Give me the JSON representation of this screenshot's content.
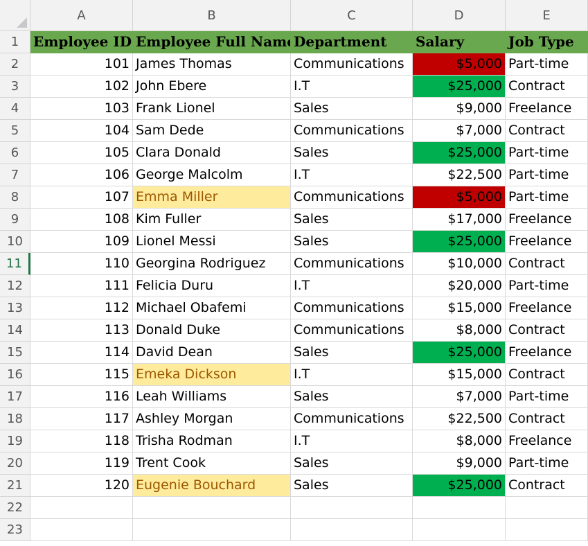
{
  "columns": [
    "A",
    "B",
    "C",
    "D",
    "E"
  ],
  "row_numbers": [
    "1",
    "2",
    "3",
    "4",
    "5",
    "6",
    "7",
    "8",
    "9",
    "10",
    "11",
    "12",
    "13",
    "14",
    "15",
    "16",
    "17",
    "18",
    "19",
    "20",
    "21",
    "22",
    "23"
  ],
  "active_row": "11",
  "headers": {
    "employee_id": "Employee ID",
    "full_name": "Employee Full Name",
    "department": "Department",
    "salary": "Salary",
    "job_type": "Job Type"
  },
  "colors": {
    "header_bg": "#6aa84f",
    "red_fill": "#c00000",
    "green_fill": "#00b050",
    "yellow_fill": "#ffeb9c",
    "yellow_text": "#9c5700"
  },
  "rows": [
    {
      "id": "101",
      "name": "James Thomas",
      "dept": "Communications",
      "salary": "$5,000",
      "job": "Part-time",
      "salary_fill": "red",
      "name_fill": ""
    },
    {
      "id": "102",
      "name": "John Ebere",
      "dept": "I.T",
      "salary": "$25,000",
      "job": "Contract",
      "salary_fill": "green",
      "name_fill": ""
    },
    {
      "id": "103",
      "name": "Frank Lionel",
      "dept": "Sales",
      "salary": "$9,000",
      "job": "Freelance",
      "salary_fill": "",
      "name_fill": ""
    },
    {
      "id": "104",
      "name": "Sam Dede",
      "dept": "Communications",
      "salary": "$7,000",
      "job": "Contract",
      "salary_fill": "",
      "name_fill": ""
    },
    {
      "id": "105",
      "name": "Clara Donald",
      "dept": "Sales",
      "salary": "$25,000",
      "job": "Part-time",
      "salary_fill": "green",
      "name_fill": ""
    },
    {
      "id": "106",
      "name": "George Malcolm",
      "dept": "I.T",
      "salary": "$22,500",
      "job": "Part-time",
      "salary_fill": "",
      "name_fill": ""
    },
    {
      "id": "107",
      "name": "Emma Miller",
      "dept": "Communications",
      "salary": "$5,000",
      "job": "Part-time",
      "salary_fill": "red",
      "name_fill": "yellow"
    },
    {
      "id": "108",
      "name": "Kim Fuller",
      "dept": "Sales",
      "salary": "$17,000",
      "job": "Freelance",
      "salary_fill": "",
      "name_fill": ""
    },
    {
      "id": "109",
      "name": "Lionel Messi",
      "dept": "Sales",
      "salary": "$25,000",
      "job": "Freelance",
      "salary_fill": "green",
      "name_fill": ""
    },
    {
      "id": "110",
      "name": "Georgina Rodriguez",
      "dept": "Communications",
      "salary": "$10,000",
      "job": "Contract",
      "salary_fill": "",
      "name_fill": ""
    },
    {
      "id": "111",
      "name": "Felicia Duru",
      "dept": "I.T",
      "salary": "$20,000",
      "job": "Part-time",
      "salary_fill": "",
      "name_fill": ""
    },
    {
      "id": "112",
      "name": "Michael Obafemi",
      "dept": "Communications",
      "salary": "$15,000",
      "job": "Freelance",
      "salary_fill": "",
      "name_fill": ""
    },
    {
      "id": "113",
      "name": "Donald Duke",
      "dept": "Communications",
      "salary": "$8,000",
      "job": "Contract",
      "salary_fill": "",
      "name_fill": ""
    },
    {
      "id": "114",
      "name": "David Dean",
      "dept": "Sales",
      "salary": "$25,000",
      "job": "Freelance",
      "salary_fill": "green",
      "name_fill": ""
    },
    {
      "id": "115",
      "name": "Emeka Dickson",
      "dept": "I.T",
      "salary": "$15,000",
      "job": "Contract",
      "salary_fill": "",
      "name_fill": "yellow"
    },
    {
      "id": "116",
      "name": "Leah Williams",
      "dept": "Sales",
      "salary": "$7,000",
      "job": "Part-time",
      "salary_fill": "",
      "name_fill": ""
    },
    {
      "id": "117",
      "name": "Ashley Morgan",
      "dept": "Communications",
      "salary": "$22,500",
      "job": "Contract",
      "salary_fill": "",
      "name_fill": ""
    },
    {
      "id": "118",
      "name": "Trisha Rodman",
      "dept": "I.T",
      "salary": "$8,000",
      "job": "Freelance",
      "salary_fill": "",
      "name_fill": ""
    },
    {
      "id": "119",
      "name": "Trent Cook",
      "dept": "Sales",
      "salary": "$9,000",
      "job": "Part-time",
      "salary_fill": "",
      "name_fill": ""
    },
    {
      "id": "120",
      "name": "Eugenie Bouchard",
      "dept": "Sales",
      "salary": "$25,000",
      "job": "Contract",
      "salary_fill": "green",
      "name_fill": "yellow"
    }
  ]
}
